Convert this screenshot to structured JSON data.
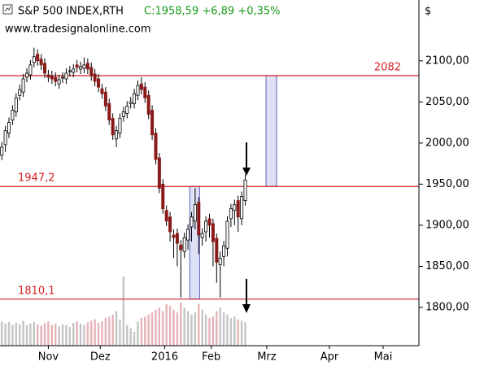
{
  "chart_data": {
    "type": "candlestick",
    "title": "S&P 500 INDEX,RTH",
    "quote": "C:1958,59 +6,89 +0,35%",
    "subtitle": "www.tradesignalonline.com",
    "y_unit": "$",
    "xlim": [
      4,
      238
    ],
    "ylim": [
      1753.5,
      2174
    ],
    "xticks": [
      {
        "value": 31,
        "label": "Nov"
      },
      {
        "value": 60,
        "label": "Dez"
      },
      {
        "value": 96,
        "label": "2016"
      },
      {
        "value": 122,
        "label": "Feb"
      },
      {
        "value": 153,
        "label": "Mrz"
      },
      {
        "value": 188,
        "label": "Apr"
      },
      {
        "value": 218,
        "label": "Mai"
      }
    ],
    "yticks": [
      {
        "value": 1800,
        "label": "1800,00"
      },
      {
        "value": 1850,
        "label": "1850,00"
      },
      {
        "value": 1900,
        "label": "1900,00"
      },
      {
        "value": 1950,
        "label": "1950,00"
      },
      {
        "value": 2000,
        "label": "2000,00"
      },
      {
        "value": 2050,
        "label": "2050,00"
      },
      {
        "value": 2100,
        "label": "2100,00"
      }
    ],
    "up_color": "#ffffff",
    "down_color": "#8b1a1a",
    "volume_up_color": "#c4c4c4",
    "volume_down_color": "#e6b3b8",
    "volume_lim": [
      0,
      100
    ],
    "level_color": "#d42020",
    "box_color": "#dfe1f6",
    "x": [
      5,
      7,
      9,
      11,
      13,
      15,
      17,
      19,
      21,
      23,
      25,
      27,
      29,
      31,
      33,
      35,
      37,
      39,
      41,
      43,
      45,
      47,
      49,
      51,
      53,
      55,
      57,
      59,
      61,
      63,
      65,
      67,
      69,
      71,
      73,
      75,
      77,
      79,
      81,
      83,
      85,
      87,
      89,
      91,
      93,
      95,
      97,
      99,
      101,
      103,
      105,
      107,
      109,
      111,
      113,
      115,
      117,
      119,
      121,
      123,
      125,
      127,
      129,
      131,
      133,
      135,
      137,
      139,
      141
    ],
    "open": [
      1985,
      1998,
      2012,
      2028,
      2038,
      2058,
      2062,
      2080,
      2083,
      2098,
      2108,
      2102,
      2097,
      2083,
      2082,
      2080,
      2072,
      2079,
      2078,
      2087,
      2086,
      2095,
      2090,
      2091,
      2097,
      2092,
      2084,
      2078,
      2066,
      2062,
      2048,
      2030,
      2005,
      2012,
      2032,
      2036,
      2048,
      2048,
      2058,
      2072,
      2068,
      2058,
      2040,
      2012,
      1982,
      1950,
      1918,
      1910,
      1888,
      1890,
      1876,
      1868,
      1882,
      1898,
      1905,
      1928,
      1885,
      1892,
      1908,
      1902,
      1884,
      1852,
      1862,
      1872,
      1908,
      1918,
      1930,
      1908,
      1930
    ],
    "high": [
      2001,
      2021,
      2031,
      2046,
      2061,
      2071,
      2084,
      2091,
      2101,
      2116,
      2114,
      2108,
      2103,
      2089,
      2088,
      2086,
      2083,
      2086,
      2091,
      2094,
      2096,
      2101,
      2099,
      2104,
      2103,
      2098,
      2090,
      2084,
      2072,
      2068,
      2054,
      2036,
      2021,
      2036,
      2044,
      2051,
      2056,
      2066,
      2076,
      2080,
      2074,
      2064,
      2046,
      2018,
      1988,
      1956,
      1924,
      1916,
      1895,
      1896,
      1882,
      1891,
      1901,
      1916,
      1945,
      1934,
      1896,
      1911,
      1914,
      1908,
      1890,
      1868,
      1881,
      1911,
      1926,
      1931,
      1936,
      1941,
      1962
    ],
    "low": [
      1979,
      1989,
      2006,
      2022,
      2032,
      2052,
      2056,
      2074,
      2077,
      2092,
      2094,
      2089,
      2079,
      2074,
      2072,
      2069,
      2066,
      2073,
      2072,
      2081,
      2080,
      2086,
      2084,
      2085,
      2084,
      2076,
      2069,
      2062,
      2054,
      2039,
      2022,
      2004,
      1995,
      2006,
      2026,
      2030,
      2042,
      2042,
      2052,
      2059,
      2049,
      2029,
      2004,
      1974,
      1939,
      1914,
      1899,
      1880,
      1860,
      1850,
      1812,
      1860,
      1870,
      1880,
      1895,
      1865,
      1875,
      1880,
      1885,
      1850,
      1830,
      1812,
      1850,
      1862,
      1898,
      1900,
      1892,
      1900,
      1924
    ],
    "close": [
      1995,
      2015,
      2025,
      2040,
      2055,
      2065,
      2078,
      2085,
      2095,
      2105,
      2100,
      2095,
      2085,
      2080,
      2078,
      2075,
      2077,
      2080,
      2085,
      2088,
      2090,
      2092,
      2093,
      2095,
      2090,
      2082,
      2075,
      2068,
      2060,
      2045,
      2028,
      2010,
      2015,
      2030,
      2038,
      2045,
      2050,
      2060,
      2070,
      2065,
      2055,
      2035,
      2010,
      1980,
      1945,
      1920,
      1905,
      1892,
      1885,
      1878,
      1870,
      1885,
      1895,
      1910,
      1925,
      1888,
      1890,
      1905,
      1900,
      1880,
      1855,
      1860,
      1875,
      1905,
      1920,
      1925,
      1910,
      1935,
      1955
    ],
    "volume": [
      35,
      32,
      34,
      30,
      33,
      31,
      36,
      30,
      32,
      34,
      31,
      29,
      33,
      35,
      30,
      32,
      28,
      31,
      30,
      27,
      33,
      35,
      32,
      30,
      34,
      36,
      38,
      33,
      35,
      40,
      42,
      45,
      50,
      38,
      100,
      30,
      25,
      20,
      35,
      40,
      42,
      45,
      48,
      52,
      55,
      50,
      60,
      58,
      52,
      48,
      62,
      55,
      50,
      45,
      48,
      60,
      52,
      45,
      40,
      42,
      50,
      55,
      48,
      45,
      40,
      42,
      38,
      36,
      34
    ],
    "levels": [
      {
        "value": 2082,
        "label": "2082",
        "label_position": "right"
      },
      {
        "value": 1947.2,
        "label": "1947,2",
        "label_position": "left"
      },
      {
        "value": 1810.1,
        "label": "1810,1",
        "label_position": "left"
      }
    ],
    "boxes": [
      {
        "x": [
          110,
          115.5
        ],
        "y": [
          1810.1,
          1947.2
        ]
      },
      {
        "x": [
          152.6,
          158.5
        ],
        "y": [
          1947.2,
          2082
        ]
      }
    ]
  }
}
